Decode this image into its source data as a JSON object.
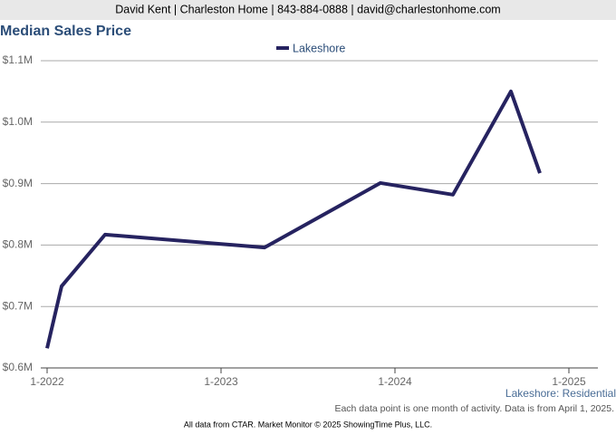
{
  "header": {
    "contact": "David Kent | Charleston Home | 843-884-0888 | david@charlestonhome.com"
  },
  "chart_data": {
    "type": "line",
    "title": "Median Sales Price",
    "x": [
      "1-2022",
      "2-2022",
      "5-2022",
      "4-2023",
      "12-2023",
      "5-2024",
      "9-2024",
      "11-2024"
    ],
    "series": [
      {
        "name": "Lakeshore",
        "color": "#262360",
        "values": [
          0.632,
          0.733,
          0.817,
          0.796,
          0.901,
          0.882,
          1.05,
          0.917
        ]
      }
    ],
    "xlim": [
      "1-2022",
      "3-2025"
    ],
    "xticks": [
      "1-2022",
      "1-2023",
      "1-2024",
      "1-2025"
    ],
    "ylim": [
      0.6,
      1.1
    ],
    "yticks": [
      {
        "value": 0.6,
        "label": "$0.6M"
      },
      {
        "value": 0.7,
        "label": "$0.7M"
      },
      {
        "value": 0.8,
        "label": "$0.8M"
      },
      {
        "value": 0.9,
        "label": "$0.9M"
      },
      {
        "value": 1.0,
        "label": "$1.0M"
      },
      {
        "value": 1.1,
        "label": "$1.1M"
      }
    ],
    "grid": true,
    "legend": "top",
    "annotations": [
      "Lakeshore: Residential",
      "Each data point is one month of activity. Data is from April 1, 2025."
    ]
  },
  "footer": {
    "source": "All data from CTAR. Market Monitor © 2025 ShowingTime Plus, LLC."
  }
}
